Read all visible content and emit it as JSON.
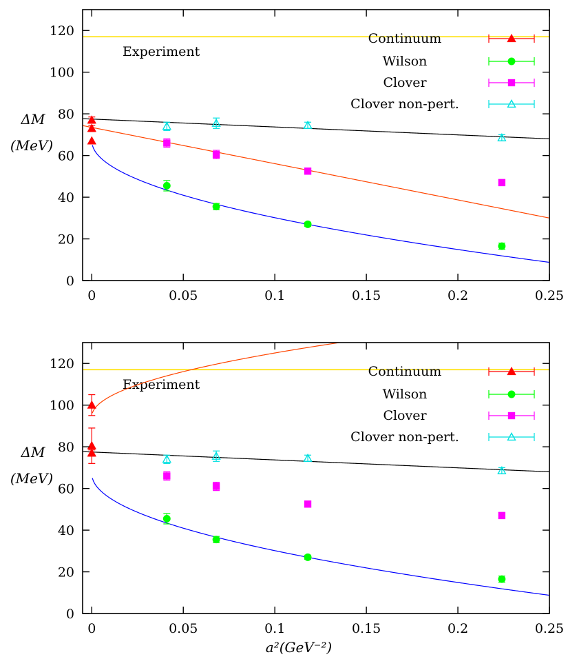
{
  "chart_data": [
    {
      "type": "scatter",
      "panel": "top",
      "experiment_value": 117,
      "experiment_label": "Experiment",
      "ylabel_line1": "ΔM",
      "ylabel_line2": "(MeV)",
      "xlabel": "",
      "xlim": [
        -0.005,
        0.25
      ],
      "ylim": [
        0,
        130
      ],
      "x_ticks": [
        0,
        0.05,
        0.1,
        0.15,
        0.2,
        0.25
      ],
      "x_tick_labels": [
        "0",
        "0.05",
        "0.1",
        "0.15",
        "0.2",
        "0.25"
      ],
      "y_ticks": [
        0,
        20,
        40,
        60,
        80,
        100,
        120
      ],
      "y_tick_labels": [
        "0",
        "20",
        "40",
        "60",
        "80",
        "100",
        "120"
      ],
      "series": [
        {
          "name": "Continuum",
          "marker": "triangle-filled",
          "color": "#ff0000",
          "points": [
            {
              "x": 0,
              "y": 77,
              "err": 1.5
            },
            {
              "x": 0,
              "y": 73,
              "err": 1.5
            },
            {
              "x": 0,
              "y": 67,
              "err": 0
            }
          ]
        },
        {
          "name": "Wilson",
          "marker": "circle-filled",
          "color": "#00ff00",
          "points": [
            {
              "x": 0.041,
              "y": 45.5,
              "err": 2.5
            },
            {
              "x": 0.068,
              "y": 35.5,
              "err": 1.5
            },
            {
              "x": 0.118,
              "y": 27,
              "err": 1.0
            },
            {
              "x": 0.224,
              "y": 16.5,
              "err": 1.5
            }
          ]
        },
        {
          "name": "Clover",
          "marker": "square-filled",
          "color": "#ff00ff",
          "points": [
            {
              "x": 0.041,
              "y": 66,
              "err": 2.0
            },
            {
              "x": 0.068,
              "y": 60.5,
              "err": 2.0
            },
            {
              "x": 0.118,
              "y": 52.5,
              "err": 1.5
            },
            {
              "x": 0.224,
              "y": 47,
              "err": 1.5
            }
          ]
        },
        {
          "name": "Clover non-pert.",
          "marker": "triangle-open",
          "color": "#00e0e0",
          "points": [
            {
              "x": 0.041,
              "y": 74,
              "err": 2.0
            },
            {
              "x": 0.068,
              "y": 75.5,
              "err": 2.5
            },
            {
              "x": 0.118,
              "y": 74.5,
              "err": 1.5
            },
            {
              "x": 0.224,
              "y": 68.5,
              "err": 1.5
            }
          ]
        }
      ],
      "fits": [
        {
          "color": "#0000ff",
          "form": "sqrt",
          "a": 67,
          "b": 116.5,
          "x_from": 0.0003
        },
        {
          "color": "#ff4500",
          "form": "linear",
          "a": 73.5,
          "b": -174,
          "x_from": -0.005
        },
        {
          "color": "#000000",
          "form": "linear",
          "a": 77.5,
          "b": -38,
          "x_from": -0.005
        }
      ]
    },
    {
      "type": "scatter",
      "panel": "bottom",
      "experiment_value": 117,
      "experiment_label": "Experiment",
      "ylabel_line1": "ΔM",
      "ylabel_line2": "(MeV)",
      "xlabel": "a²(GeV⁻²)",
      "xlim": [
        -0.005,
        0.25
      ],
      "ylim": [
        0,
        130
      ],
      "x_ticks": [
        0,
        0.05,
        0.1,
        0.15,
        0.2,
        0.25
      ],
      "x_tick_labels": [
        "0",
        "0.05",
        "0.1",
        "0.15",
        "0.2",
        "0.25"
      ],
      "y_ticks": [
        0,
        20,
        40,
        60,
        80,
        100,
        120
      ],
      "y_tick_labels": [
        "0",
        "20",
        "40",
        "60",
        "80",
        "100",
        "120"
      ],
      "series": [
        {
          "name": "Continuum",
          "marker": "triangle-filled",
          "color": "#ff0000",
          "points": [
            {
              "x": 0,
              "y": 100,
              "err": 5.0
            },
            {
              "x": 0,
              "y": 80.5,
              "err": 8.5
            },
            {
              "x": 0,
              "y": 77,
              "err": 1.5
            }
          ]
        },
        {
          "name": "Wilson",
          "marker": "circle-filled",
          "color": "#00ff00",
          "points": [
            {
              "x": 0.041,
              "y": 45.5,
              "err": 2.5
            },
            {
              "x": 0.068,
              "y": 35.5,
              "err": 1.5
            },
            {
              "x": 0.118,
              "y": 27,
              "err": 1.0
            },
            {
              "x": 0.224,
              "y": 16.5,
              "err": 1.5
            }
          ]
        },
        {
          "name": "Clover",
          "marker": "square-filled",
          "color": "#ff00ff",
          "points": [
            {
              "x": 0.041,
              "y": 66,
              "err": 2.0
            },
            {
              "x": 0.068,
              "y": 61,
              "err": 2.0
            },
            {
              "x": 0.118,
              "y": 52.5,
              "err": 1.5
            },
            {
              "x": 0.224,
              "y": 47,
              "err": 1.5
            }
          ]
        },
        {
          "name": "Clover non-pert.",
          "marker": "triangle-open",
          "color": "#00e0e0",
          "points": [
            {
              "x": 0.041,
              "y": 74,
              "err": 2.0
            },
            {
              "x": 0.068,
              "y": 75.5,
              "err": 2.5
            },
            {
              "x": 0.118,
              "y": 74.5,
              "err": 1.5
            },
            {
              "x": 0.224,
              "y": 68.5,
              "err": 1.5
            }
          ]
        }
      ],
      "fits": [
        {
          "color": "#0000ff",
          "form": "sqrt",
          "a": 67,
          "b": 116.5,
          "x_from": 0.0003
        },
        {
          "color": "#ff4500",
          "form": "sqrt",
          "a": 94.5,
          "b": -96.5,
          "x_from": 0.0003
        },
        {
          "color": "#000000",
          "form": "linear",
          "a": 77.5,
          "b": -38,
          "x_from": -0.005
        }
      ]
    }
  ]
}
